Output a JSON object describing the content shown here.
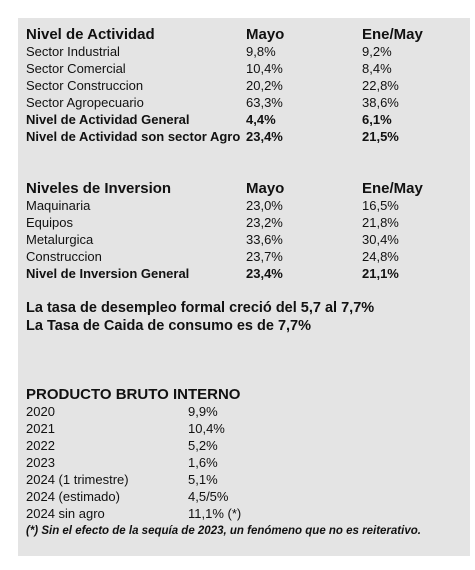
{
  "activity": {
    "header": [
      "Nivel de Actividad",
      "Mayo",
      "Ene/May"
    ],
    "rows": [
      [
        "Sector Industrial",
        "9,8%",
        "9,2%"
      ],
      [
        "Sector Comercial",
        "10,4%",
        "8,4%"
      ],
      [
        "Sector Construccion",
        "20,2%",
        "22,8%"
      ],
      [
        "Sector Agropecuario",
        "63,3%",
        "38,6%"
      ],
      [
        "Nivel de Actividad General",
        "4,4%",
        "6,1%"
      ],
      [
        "Nivel de Actividad son sector Agro",
        "23,4%",
        "21,5%"
      ]
    ]
  },
  "investment": {
    "header": [
      "Niveles de Inversion",
      "Mayo",
      "Ene/May"
    ],
    "rows": [
      [
        "Maquinaria",
        "23,0%",
        "16,5%"
      ],
      [
        "Equipos",
        "23,2%",
        "21,8%"
      ],
      [
        "Metalurgica",
        "33,6%",
        "30,4%"
      ],
      [
        "Construccion",
        "23,7%",
        "24,8%"
      ],
      [
        "Nivel de Inversion General",
        "23,4%",
        "21,1%"
      ]
    ]
  },
  "statements": [
    "La tasa de desempleo formal creció del 5,7 al 7,7%",
    "La Tasa de Caida de consumo es de 7,7%"
  ],
  "gdp": {
    "title": "PRODUCTO BRUTO INTERNO",
    "rows": [
      [
        "2020",
        "9,9%"
      ],
      [
        "2021",
        "10,4%"
      ],
      [
        "2022",
        "5,2%"
      ],
      [
        "2023",
        "1,6%"
      ],
      [
        "2024 (1 trimestre)",
        "5,1%"
      ],
      [
        "2024 (estimado)",
        "4,5/5%"
      ],
      [
        "2024 sin agro",
        "11,1% (*)"
      ]
    ],
    "footnote": "(*) Sin el efecto de la sequía de 2023, un fenómeno que no es reiterativo."
  }
}
